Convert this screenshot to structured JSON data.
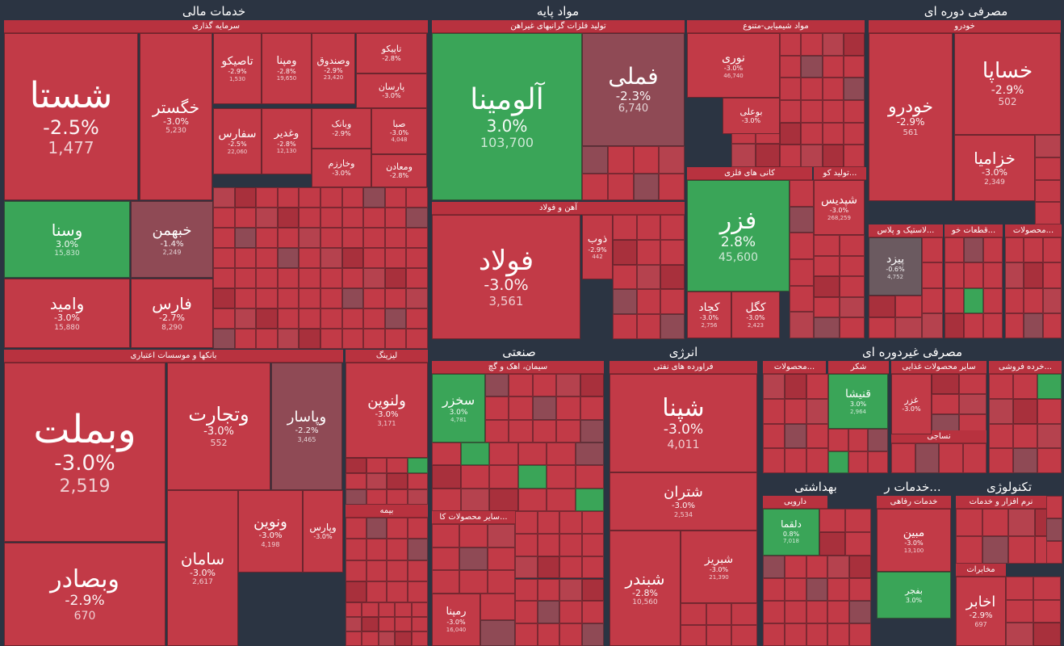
{
  "colors": {
    "red": "#c23a47",
    "darkred": "#a8303c",
    "mid": "#8f4a55",
    "grey": "#6b5a60",
    "green": "#3aa558",
    "bg": "#2b3442",
    "header": "#b8323f"
  },
  "chart_data": {
    "type": "treemap",
    "sectors": [
      {
        "name": "خدمات مالی"
      },
      {
        "name": "مواد پایه"
      },
      {
        "name": "مصرفی دوره ای"
      },
      {
        "name": "صنعتی"
      },
      {
        "name": "انرژی"
      },
      {
        "name": "مصرفی غیردوره ای"
      },
      {
        "name": "بهداشتی"
      },
      {
        "name": "خدمات ر..."
      },
      {
        "name": "تکنولوژی"
      }
    ],
    "industries": [
      {
        "name": "سرمایه گذاری"
      },
      {
        "name": "بانکها و موسسات اعتباری"
      },
      {
        "name": "لیزینگ"
      },
      {
        "name": "بیمه"
      },
      {
        "name": "تولید فلزات گرانبهای غیراهن"
      },
      {
        "name": "مواد شیمیایی-متنوع"
      },
      {
        "name": "آهن و فولاد"
      },
      {
        "name": "کانی های فلزی"
      },
      {
        "name": "تولید کو..."
      },
      {
        "name": "خودرو"
      },
      {
        "name": "لاستیک و پلاس..."
      },
      {
        "name": "قطعات خو..."
      },
      {
        "name": "محصولات..."
      },
      {
        "name": "سیمان، اهک و گچ"
      },
      {
        "name": "سایر محصولات کا..."
      },
      {
        "name": "فراورده های نفتی"
      },
      {
        "name": "محصولات..."
      },
      {
        "name": "شکر"
      },
      {
        "name": "سایر محصولات غذایی"
      },
      {
        "name": "خرده فروشی..."
      },
      {
        "name": "نساجی"
      },
      {
        "name": "دارویی"
      },
      {
        "name": "خدمات رفاهی"
      },
      {
        "name": "نرم افزار و خدمات"
      },
      {
        "name": "مخابرات"
      }
    ],
    "stocks": [
      {
        "name": "شستا",
        "change": "-2.5%",
        "value": "1,477",
        "color": "red"
      },
      {
        "name": "خگستر",
        "change": "-3.0%",
        "value": "5,230",
        "color": "red"
      },
      {
        "name": "وسنا",
        "change": "3.0%",
        "value": "15,830",
        "color": "green"
      },
      {
        "name": "خبهمن",
        "change": "-1.4%",
        "value": "2,249",
        "color": "mid"
      },
      {
        "name": "وامید",
        "change": "-3.0%",
        "value": "15,880",
        "color": "red"
      },
      {
        "name": "فارس",
        "change": "-2.7%",
        "value": "8,290",
        "color": "red"
      },
      {
        "name": "تاصیکو",
        "change": "-2.9%",
        "value": "1,530",
        "color": "red"
      },
      {
        "name": "ومپنا",
        "change": "-2.8%",
        "value": "19,650",
        "color": "red"
      },
      {
        "name": "وصندوق",
        "change": "-2.9%",
        "value": "23,420",
        "color": "red"
      },
      {
        "name": "تاپیکو",
        "change": "-2.8%",
        "value": "",
        "color": "red"
      },
      {
        "name": "پارسان",
        "change": "-3.0%",
        "value": "",
        "color": "red"
      },
      {
        "name": "وبانک",
        "change": "-2.9%",
        "value": "",
        "color": "red"
      },
      {
        "name": "صبا",
        "change": "-3.0%",
        "value": "4,048",
        "color": "red"
      },
      {
        "name": "سفارس",
        "change": "-2.5%",
        "value": "22,060",
        "color": "red"
      },
      {
        "name": "وغدیر",
        "change": "-2.8%",
        "value": "12,130",
        "color": "red"
      },
      {
        "name": "وخارزم",
        "change": "-3.0%",
        "value": "",
        "color": "red"
      },
      {
        "name": "ومعادن",
        "change": "-2.8%",
        "value": "",
        "color": "red"
      },
      {
        "name": "وبملت",
        "change": "-3.0%",
        "value": "2,519",
        "color": "red"
      },
      {
        "name": "وتجارت",
        "change": "-3.0%",
        "value": "552",
        "color": "red"
      },
      {
        "name": "وپاسار",
        "change": "-2.2%",
        "value": "3,465",
        "color": "mid"
      },
      {
        "name": "وبصادر",
        "change": "-2.9%",
        "value": "670",
        "color": "red"
      },
      {
        "name": "سامان",
        "change": "-3.0%",
        "value": "2,617",
        "color": "red"
      },
      {
        "name": "ونوین",
        "change": "-3.0%",
        "value": "4,198",
        "color": "red"
      },
      {
        "name": "وپارس",
        "change": "-3.0%",
        "value": "",
        "color": "red"
      },
      {
        "name": "ولنوین",
        "change": "-3.0%",
        "value": "3,171",
        "color": "red"
      },
      {
        "name": "آلومینا",
        "change": "3.0%",
        "value": "103,700",
        "color": "green"
      },
      {
        "name": "فملی",
        "change": "-2.3%",
        "value": "6,740",
        "color": "mid"
      },
      {
        "name": "فولاد",
        "change": "-3.0%",
        "value": "3,561",
        "color": "red"
      },
      {
        "name": "ذوب",
        "change": "-2.9%",
        "value": "442",
        "color": "red"
      },
      {
        "name": "فزر",
        "change": "2.8%",
        "value": "45,600",
        "color": "green"
      },
      {
        "name": "کچاد",
        "change": "-3.0%",
        "value": "2,756",
        "color": "red"
      },
      {
        "name": "کگل",
        "change": "-3.0%",
        "value": "2,423",
        "color": "red"
      },
      {
        "name": "نوری",
        "change": "-3.0%",
        "value": "46,740",
        "color": "red"
      },
      {
        "name": "بوعلی",
        "change": "-3.0%",
        "value": "",
        "color": "red"
      },
      {
        "name": "شپدیس",
        "change": "-3.0%",
        "value": "268,259",
        "color": "red"
      },
      {
        "name": "خساپا",
        "change": "-2.9%",
        "value": "502",
        "color": "red"
      },
      {
        "name": "خودرو",
        "change": "-2.9%",
        "value": "561",
        "color": "red"
      },
      {
        "name": "خزامیا",
        "change": "-3.0%",
        "value": "2,349",
        "color": "red"
      },
      {
        "name": "پیزد",
        "change": "-0.6%",
        "value": "4,752",
        "color": "grey"
      },
      {
        "name": "سخزر",
        "change": "3.0%",
        "value": "4,781",
        "color": "green"
      },
      {
        "name": "شپنا",
        "change": "-3.0%",
        "value": "4,011",
        "color": "red"
      },
      {
        "name": "شتران",
        "change": "-3.0%",
        "value": "2,534",
        "color": "red"
      },
      {
        "name": "شبندر",
        "change": "-2.8%",
        "value": "10,560",
        "color": "red"
      },
      {
        "name": "شبریز",
        "change": "-3.0%",
        "value": "21,390",
        "color": "red"
      },
      {
        "name": "قنیشا",
        "change": "3.0%",
        "value": "2,964",
        "color": "green"
      },
      {
        "name": "غزر",
        "change": "-3.0%",
        "value": "",
        "color": "red"
      },
      {
        "name": "دلقما",
        "change": "0.8%",
        "value": "7,018",
        "color": "green"
      },
      {
        "name": "مبین",
        "change": "-3.0%",
        "value": "13,100",
        "color": "red"
      },
      {
        "name": "بفجر",
        "change": "3.0%",
        "value": "",
        "color": "green"
      },
      {
        "name": "اخابر",
        "change": "-2.9%",
        "value": "697",
        "color": "red"
      },
      {
        "name": "رمپنا",
        "change": "-3.0%",
        "value": "16,040",
        "color": "red"
      }
    ]
  }
}
